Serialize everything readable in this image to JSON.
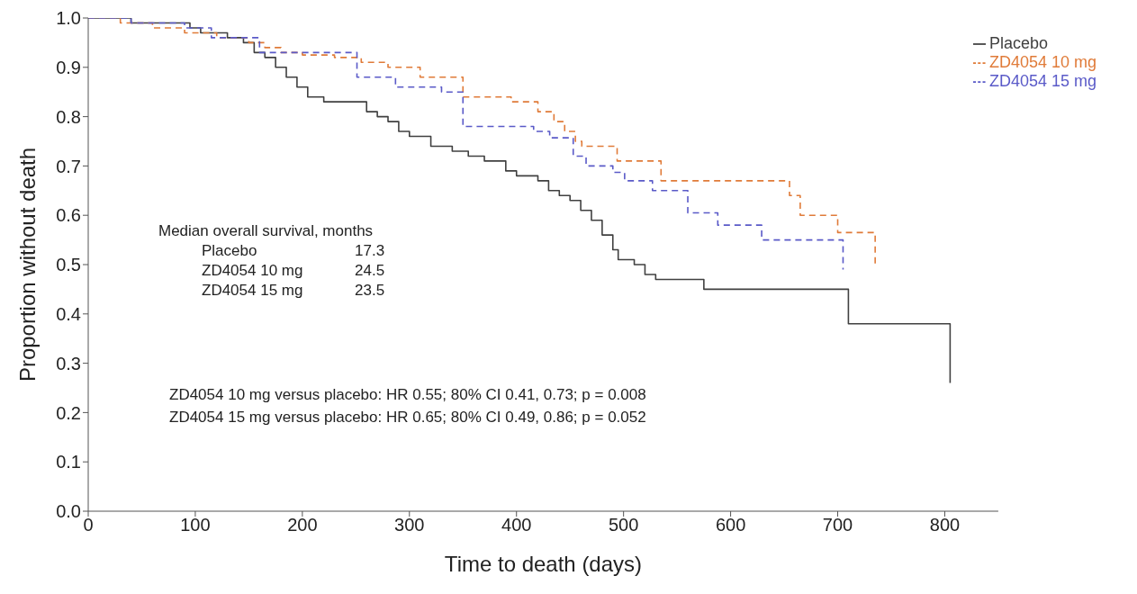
{
  "chart_data": {
    "type": "step",
    "xlabel": "Time to death (days)",
    "ylabel": "Proportion without death",
    "xlim": [
      0,
      850
    ],
    "xticks": [
      0,
      100,
      200,
      300,
      400,
      500,
      600,
      700,
      800
    ],
    "ylim": [
      0,
      1.0
    ],
    "yticks": [
      {
        "value": 0,
        "label": "0.0"
      },
      0.1,
      0.2,
      0.3,
      0.4,
      0.5,
      0.6,
      0.7,
      0.8,
      0.9,
      {
        "value": 1,
        "label": "1.0"
      }
    ],
    "legend": "top right",
    "marker": "none",
    "grid": false,
    "series": [
      {
        "name": "Placebo",
        "color": "#404040",
        "line_style": "solid",
        "x": [
          0,
          40,
          95,
          105,
          130,
          145,
          155,
          165,
          175,
          185,
          195,
          205,
          220,
          260,
          270,
          280,
          290,
          300,
          320,
          340,
          355,
          370,
          390,
          400,
          420,
          430,
          440,
          450,
          460,
          470,
          480,
          490,
          495,
          510,
          520,
          530,
          575,
          710,
          805
        ],
        "values": [
          1.0,
          0.99,
          0.98,
          0.97,
          0.96,
          0.95,
          0.93,
          0.92,
          0.9,
          0.88,
          0.86,
          0.84,
          0.83,
          0.81,
          0.8,
          0.79,
          0.77,
          0.76,
          0.74,
          0.73,
          0.72,
          0.71,
          0.69,
          0.68,
          0.67,
          0.65,
          0.64,
          0.63,
          0.61,
          0.59,
          0.56,
          0.53,
          0.51,
          0.5,
          0.48,
          0.47,
          0.45,
          0.38,
          0.26
        ]
      },
      {
        "name": "ZD4054 10 mg",
        "color": "#e07b39",
        "line_style": "dashed",
        "x": [
          0,
          30,
          60,
          90,
          120,
          150,
          165,
          180,
          200,
          230,
          255,
          280,
          310,
          350,
          395,
          420,
          435,
          445,
          455,
          461,
          494,
          535,
          655,
          665,
          700,
          735
        ],
        "values": [
          1.0,
          0.99,
          0.98,
          0.97,
          0.96,
          0.95,
          0.94,
          0.93,
          0.925,
          0.92,
          0.91,
          0.9,
          0.88,
          0.84,
          0.83,
          0.81,
          0.79,
          0.77,
          0.75,
          0.74,
          0.71,
          0.67,
          0.64,
          0.6,
          0.565,
          0.5
        ]
      },
      {
        "name": "ZD4054 15 mg",
        "color": "#5a5ac8",
        "line_style": "dashed",
        "x": [
          0,
          40,
          90,
          115,
          160,
          251,
          287,
          330,
          350,
          416,
          431,
          453,
          465,
          490,
          501,
          527,
          560,
          588,
          629,
          705
        ],
        "values": [
          1.0,
          0.99,
          0.98,
          0.96,
          0.93,
          0.88,
          0.86,
          0.85,
          0.78,
          0.77,
          0.757,
          0.72,
          0.7,
          0.687,
          0.67,
          0.65,
          0.605,
          0.58,
          0.55,
          0.49
        ]
      }
    ],
    "annotations": [
      "Median overall survival, months",
      "Placebo",
      "17.3",
      "ZD4054 10 mg",
      "24.5",
      "ZD4054 15 mg",
      "23.5",
      "ZD4054 10 mg versus placebo: HR 0.55; 80% CI 0.41, 0.73; p = 0.008",
      "ZD4054 15 mg versus placebo: HR 0.65; 80% CI 0.49, 0.86; p = 0.052"
    ]
  }
}
